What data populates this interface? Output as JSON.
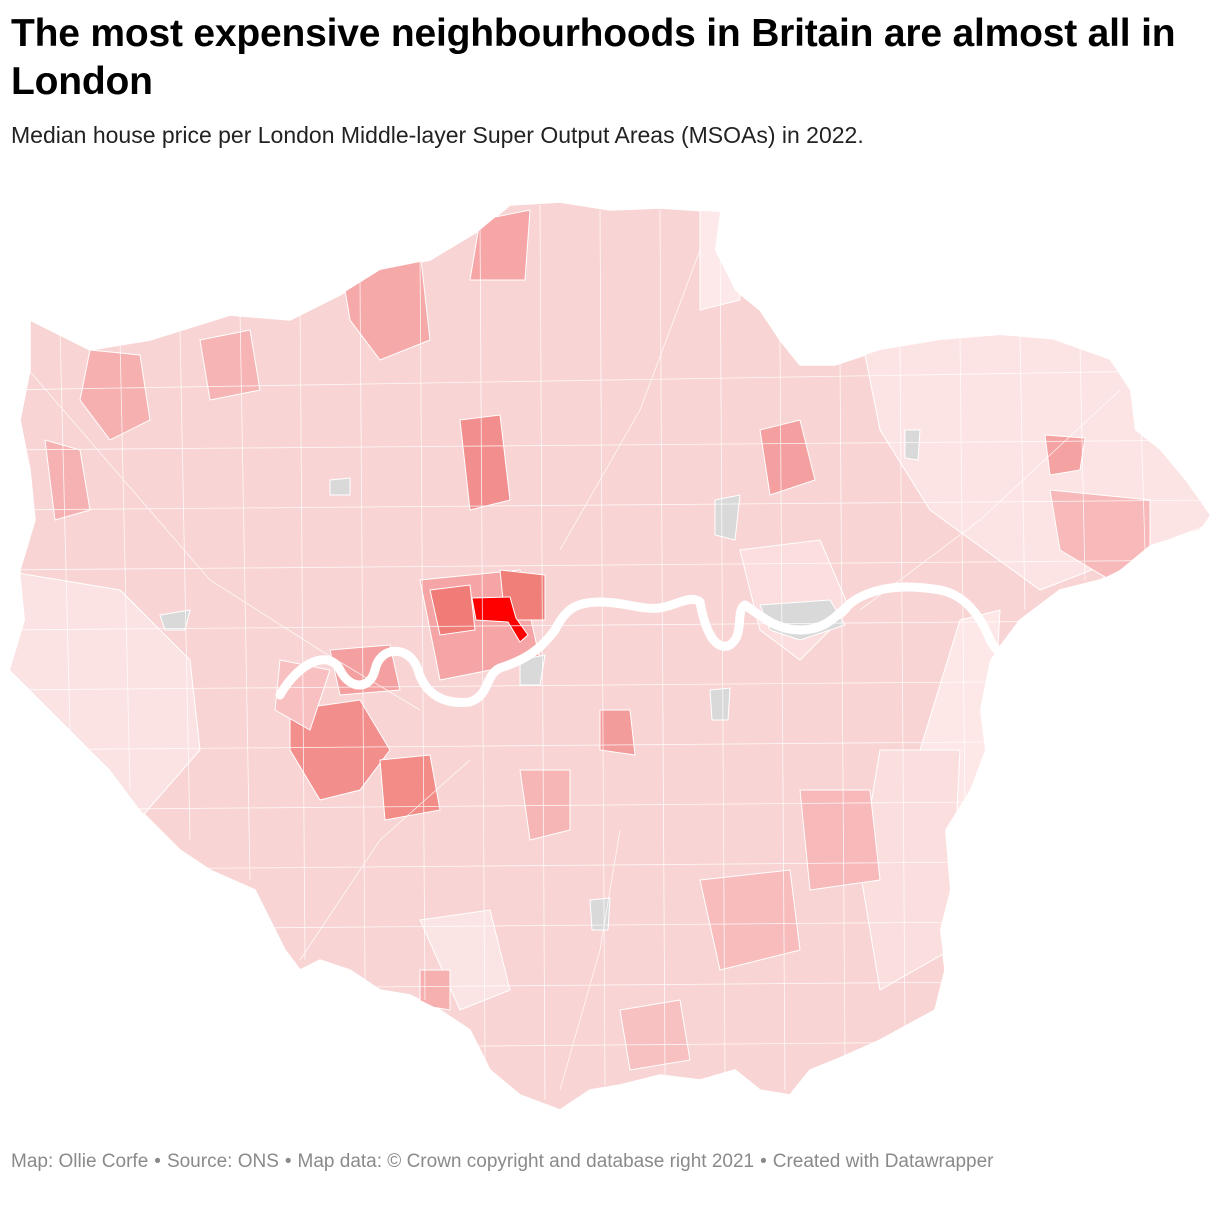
{
  "header": {
    "title": "The most expensive neighbourhoods in Britain are almost all in London",
    "subtitle": "Median house price per London Middle-layer Super Output Areas (MSOAs) in 2022."
  },
  "footer": {
    "map_credit": "Map: Ollie Corfe",
    "source": "Source: ONS",
    "map_data": "Map data: © Crown copyright and database right 2021",
    "created_with": "Created with Datawrapper",
    "separator": "•"
  },
  "map": {
    "type": "choropleth",
    "region": "London MSOAs",
    "metric": "Median house price",
    "year": "2022",
    "colors": {
      "base": "#f9cfcf",
      "light": "#fde6e6",
      "mid": "#f7b3b3",
      "dark": "#f28f8a",
      "highest": "#ff0000",
      "no_data": "#d9d9d9",
      "river": "#ffffff",
      "borders": "#ffffff"
    }
  }
}
